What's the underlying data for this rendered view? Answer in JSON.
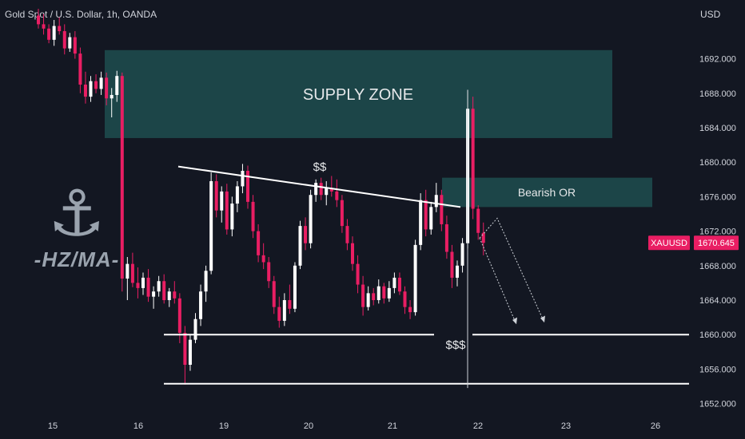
{
  "header": {
    "title": "Gold Spot / U.S. Dollar, 1h, OANDA",
    "currency": "USD"
  },
  "watermark": {
    "icon": "anchor-icon",
    "text": "-HZ/MA-"
  },
  "colors": {
    "background": "#131722",
    "bull": "#ffffff",
    "bear": "#e91e63",
    "zone": "#1e4a4c",
    "price_tag": "#e91e63",
    "line": "#ffffff"
  },
  "chart_data": {
    "type": "candlestick",
    "title": "Gold Spot / U.S. Dollar, 1h, OANDA",
    "ylabel": "USD",
    "ylim": [
      1650.5,
      1696.5
    ],
    "yticks": [
      "1692.000",
      "1688.000",
      "1684.000",
      "1680.000",
      "1676.000",
      "1672.000",
      "1668.000",
      "1664.000",
      "1660.000",
      "1656.000",
      "1652.000"
    ],
    "xticks": [
      "15",
      "16",
      "19",
      "20",
      "21",
      "22",
      "23",
      "26"
    ],
    "current_price": {
      "symbol": "XAUUSD",
      "value": "1670.645"
    },
    "annotations": [
      {
        "text": "SUPPLY ZONE",
        "kind": "zone",
        "from": 1682.8,
        "to": 1693.0
      },
      {
        "text": "Bearish OR",
        "kind": "zone",
        "from": 1674.8,
        "to": 1678.2
      },
      {
        "text": "$$",
        "kind": "label"
      },
      {
        "text": "$$$",
        "kind": "label"
      }
    ],
    "levels": [
      1660.0,
      1654.3
    ],
    "trendline": {
      "from": 1679.5,
      "to": 1674.8
    },
    "projection": [
      1671.2,
      1673.5,
      1664.5,
      1660.8
    ],
    "candles": [
      [
        1697.0,
        1697.8,
        1695.5,
        1696.0
      ],
      [
        1696.0,
        1697.2,
        1694.8,
        1695.5
      ],
      [
        1695.5,
        1696.0,
        1693.8,
        1694.2
      ],
      [
        1694.2,
        1696.5,
        1693.5,
        1695.8
      ],
      [
        1695.8,
        1696.8,
        1694.8,
        1695.2
      ],
      [
        1695.2,
        1696.0,
        1692.5,
        1693.2
      ],
      [
        1693.2,
        1695.0,
        1692.8,
        1694.5
      ],
      [
        1694.5,
        1695.2,
        1692.0,
        1692.6
      ],
      [
        1692.6,
        1693.3,
        1688.0,
        1689.0
      ],
      [
        1689.0,
        1690.5,
        1686.8,
        1687.6
      ],
      [
        1687.6,
        1690.0,
        1687.0,
        1689.4
      ],
      [
        1689.4,
        1690.2,
        1688.0,
        1688.5
      ],
      [
        1688.5,
        1690.5,
        1687.8,
        1689.8
      ],
      [
        1689.8,
        1690.4,
        1686.6,
        1687.4
      ],
      [
        1687.4,
        1688.6,
        1685.2,
        1687.8
      ],
      [
        1687.8,
        1690.6,
        1687.0,
        1690.0
      ],
      [
        1690.0,
        1690.4,
        1665.0,
        1666.5
      ],
      [
        1666.5,
        1669.0,
        1664.0,
        1668.2
      ],
      [
        1668.2,
        1669.5,
        1665.5,
        1666.0
      ],
      [
        1666.0,
        1667.8,
        1664.2,
        1665.4
      ],
      [
        1665.4,
        1667.2,
        1664.6,
        1666.6
      ],
      [
        1666.6,
        1667.6,
        1663.8,
        1664.4
      ],
      [
        1664.4,
        1665.6,
        1663.0,
        1665.0
      ],
      [
        1665.0,
        1666.8,
        1664.4,
        1666.2
      ],
      [
        1666.2,
        1667.0,
        1663.6,
        1664.0
      ],
      [
        1664.0,
        1665.4,
        1663.2,
        1665.0
      ],
      [
        1665.0,
        1666.2,
        1663.6,
        1664.2
      ],
      [
        1664.2,
        1664.8,
        1659.0,
        1660.2
      ],
      [
        1660.2,
        1661.0,
        1654.2,
        1656.5
      ],
      [
        1656.5,
        1660.0,
        1655.8,
        1659.4
      ],
      [
        1659.4,
        1662.5,
        1659.0,
        1661.8
      ],
      [
        1661.8,
        1665.8,
        1661.0,
        1665.0
      ],
      [
        1665.0,
        1668.0,
        1663.8,
        1667.4
      ],
      [
        1667.4,
        1678.8,
        1667.0,
        1677.8
      ],
      [
        1677.8,
        1678.6,
        1673.6,
        1674.4
      ],
      [
        1674.4,
        1677.2,
        1673.0,
        1676.6
      ],
      [
        1676.6,
        1677.5,
        1671.6,
        1672.2
      ],
      [
        1672.2,
        1676.0,
        1671.4,
        1675.2
      ],
      [
        1675.2,
        1677.8,
        1674.2,
        1677.2
      ],
      [
        1677.2,
        1679.8,
        1676.4,
        1679.0
      ],
      [
        1679.0,
        1679.6,
        1674.6,
        1675.4
      ],
      [
        1675.4,
        1676.2,
        1671.2,
        1672.0
      ],
      [
        1672.0,
        1672.8,
        1668.4,
        1669.2
      ],
      [
        1669.2,
        1670.6,
        1667.6,
        1668.4
      ],
      [
        1668.4,
        1669.0,
        1665.4,
        1666.2
      ],
      [
        1666.2,
        1666.8,
        1662.4,
        1663.2
      ],
      [
        1663.2,
        1664.4,
        1660.8,
        1661.6
      ],
      [
        1661.6,
        1664.8,
        1661.0,
        1664.0
      ],
      [
        1664.0,
        1665.8,
        1662.4,
        1663.0
      ],
      [
        1663.0,
        1668.4,
        1662.6,
        1668.0
      ],
      [
        1668.0,
        1673.2,
        1667.6,
        1672.6
      ],
      [
        1672.6,
        1673.6,
        1669.8,
        1670.6
      ],
      [
        1670.6,
        1676.8,
        1670.0,
        1676.2
      ],
      [
        1676.2,
        1678.0,
        1675.4,
        1677.6
      ],
      [
        1677.6,
        1678.2,
        1675.6,
        1676.2
      ],
      [
        1676.2,
        1677.8,
        1675.0,
        1677.0
      ],
      [
        1677.0,
        1678.4,
        1676.0,
        1676.6
      ],
      [
        1676.6,
        1678.0,
        1674.8,
        1675.6
      ],
      [
        1675.6,
        1676.2,
        1671.8,
        1672.6
      ],
      [
        1672.6,
        1673.4,
        1669.8,
        1670.6
      ],
      [
        1670.6,
        1671.4,
        1667.4,
        1668.2
      ],
      [
        1668.2,
        1669.2,
        1664.8,
        1665.8
      ],
      [
        1665.8,
        1666.8,
        1662.2,
        1663.2
      ],
      [
        1663.2,
        1665.6,
        1662.8,
        1664.8
      ],
      [
        1664.8,
        1665.4,
        1663.4,
        1664.0
      ],
      [
        1664.0,
        1666.4,
        1663.6,
        1665.6
      ],
      [
        1665.6,
        1666.0,
        1663.6,
        1664.2
      ],
      [
        1664.2,
        1666.2,
        1663.8,
        1665.4
      ],
      [
        1665.4,
        1667.2,
        1664.8,
        1666.6
      ],
      [
        1666.6,
        1667.2,
        1664.6,
        1665.0
      ],
      [
        1665.0,
        1665.6,
        1662.4,
        1663.2
      ],
      [
        1663.2,
        1664.0,
        1661.8,
        1662.6
      ],
      [
        1662.6,
        1671.0,
        1662.2,
        1670.4
      ],
      [
        1670.4,
        1676.4,
        1669.8,
        1675.6
      ],
      [
        1675.6,
        1676.8,
        1671.4,
        1672.2
      ],
      [
        1672.2,
        1675.4,
        1671.6,
        1674.8
      ],
      [
        1674.8,
        1677.6,
        1674.2,
        1676.2
      ],
      [
        1676.2,
        1676.8,
        1672.0,
        1672.8
      ],
      [
        1672.8,
        1673.8,
        1668.8,
        1669.6
      ],
      [
        1669.6,
        1670.4,
        1665.4,
        1666.6
      ],
      [
        1666.6,
        1668.6,
        1665.6,
        1668.0
      ],
      [
        1668.0,
        1671.2,
        1667.2,
        1670.6
      ],
      [
        1670.6,
        1688.4,
        1670.0,
        1686.2
      ],
      [
        1686.2,
        1687.6,
        1673.4,
        1674.6
      ],
      [
        1674.6,
        1675.0,
        1671.0,
        1671.8
      ],
      [
        1671.8,
        1673.0,
        1669.2,
        1670.645
      ]
    ]
  }
}
